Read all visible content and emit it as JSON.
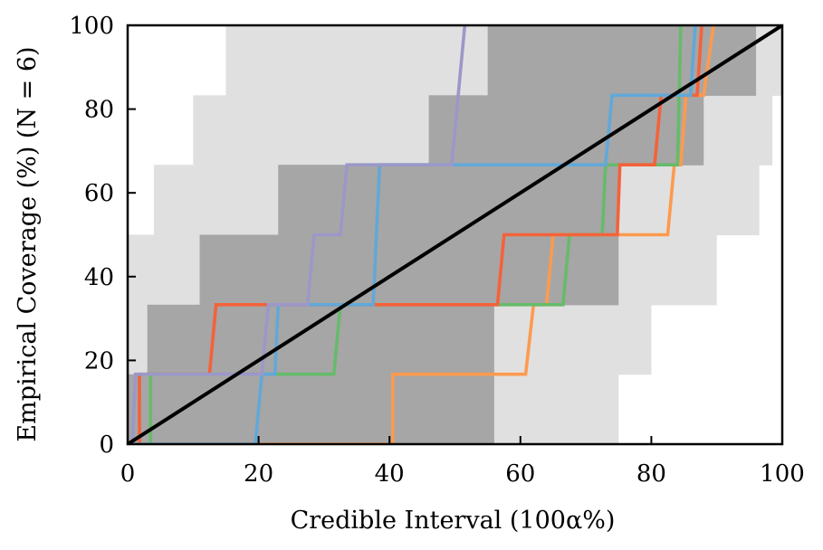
{
  "chart_data": {
    "type": "line",
    "xlabel": "Credible Interval (100α%)",
    "ylabel": "Empirical Coverage (%) (N = 6)",
    "xlim": [
      0,
      100
    ],
    "ylim": [
      0,
      100
    ],
    "x_ticks": [
      "0",
      "20",
      "40",
      "60",
      "80",
      "100"
    ],
    "y_ticks": [
      "0",
      "20",
      "40",
      "60",
      "80",
      "100"
    ],
    "grid": false,
    "legend": "none",
    "bands": [
      {
        "color": "#e0e0e0",
        "steps": [
          {
            "x_lo": 0,
            "x_hi": 16.5,
            "y_from": 0,
            "y_to": 16.7
          },
          {
            "x_lo": 0,
            "x_hi": 24.5,
            "y_from": 16.7,
            "y_to": 33.3
          },
          {
            "x_lo": 0,
            "x_hi": 32.5,
            "y_from": 33.3,
            "y_to": 50.0
          },
          {
            "x_lo": 4,
            "x_hi": 41.5,
            "y_from": 50.0,
            "y_to": 66.7
          },
          {
            "x_lo": 10,
            "x_hi": 53.5,
            "y_from": 66.7,
            "y_to": 83.3
          },
          {
            "x_lo": 15,
            "x_hi": 68.5,
            "y_from": 83.3,
            "y_to": 100
          }
        ],
        "steps_right": [
          {
            "x_lo": 31.5,
            "x_hi": 75,
            "y_from": 0,
            "y_to": 16.7
          },
          {
            "x_lo": 46.5,
            "x_hi": 80,
            "y_from": 16.7,
            "y_to": 33.3
          },
          {
            "x_lo": 58.5,
            "x_hi": 90,
            "y_from": 33.3,
            "y_to": 50.0
          },
          {
            "x_lo": 67.5,
            "x_hi": 96.5,
            "y_from": 50.0,
            "y_to": 66.7
          },
          {
            "x_lo": 75.5,
            "x_hi": 98.5,
            "y_from": 66.7,
            "y_to": 83.3
          },
          {
            "x_lo": 84,
            "x_hi": 100,
            "y_from": 83.3,
            "y_to": 100
          }
        ]
      },
      {
        "color": "#a6a6a6",
        "steps": [
          {
            "x_lo": 0,
            "x_hi": 56,
            "y_from": 0,
            "y_to": 16.7
          },
          {
            "x_lo": 3,
            "x_hi": 56,
            "y_from": 16.7,
            "y_to": 33.3
          },
          {
            "x_lo": 11,
            "x_hi": 75,
            "y_from": 33.3,
            "y_to": 50.0
          },
          {
            "x_lo": 23,
            "x_hi": 75,
            "y_from": 50.0,
            "y_to": 66.7
          },
          {
            "x_lo": 46,
            "x_hi": 88,
            "y_from": 66.7,
            "y_to": 83.3
          },
          {
            "x_lo": 55,
            "x_hi": 96,
            "y_from": 83.3,
            "y_to": 100
          }
        ]
      }
    ],
    "series": [
      {
        "color": "#e8e4f0",
        "x": [
          0,
          1,
          1
        ],
        "y": [
          0,
          0,
          0
        ]
      },
      {
        "color": "#fd9a4f",
        "x": [
          0,
          40.5,
          40.5,
          60.8,
          62.0,
          64.0,
          65.0,
          82.5,
          83.5,
          84.5,
          85.3,
          88.0,
          89.5
        ],
        "y": [
          0,
          0,
          16.7,
          16.7,
          33.3,
          33.3,
          50.0,
          50.0,
          66.7,
          66.7,
          83.3,
          83.3,
          100
        ]
      },
      {
        "color": "#66bb6a",
        "x": [
          0,
          3.5,
          3.5,
          31.5,
          32.5,
          66.5,
          67.5,
          72.5,
          73.0,
          84.0,
          84.5
        ],
        "y": [
          0,
          0,
          16.7,
          16.7,
          33.3,
          33.3,
          50.0,
          50.0,
          66.7,
          66.7,
          100
        ]
      },
      {
        "color": "#f4623a",
        "x": [
          0,
          1.8,
          1.8,
          12.5,
          13.5,
          56.5,
          57.5,
          74.8,
          75.2,
          80.5,
          81.5,
          87.0,
          87.7
        ],
        "y": [
          0,
          0,
          16.7,
          16.7,
          33.3,
          33.3,
          50.0,
          50.0,
          66.7,
          66.7,
          83.3,
          83.3,
          100
        ]
      },
      {
        "color": "#62a8d8",
        "x": [
          0,
          19.5,
          20.5,
          22.5,
          23.0,
          37.5,
          38.5,
          73.0,
          74.0,
          86.0,
          86.7
        ],
        "y": [
          0,
          0,
          16.7,
          16.7,
          33.3,
          33.3,
          66.7,
          66.7,
          83.3,
          83.3,
          100
        ]
      },
      {
        "color": "#9b98c8",
        "x": [
          0,
          0.7,
          1.2,
          20.5,
          21.5,
          27.5,
          28.5,
          32.5,
          33.5,
          49.5,
          51.5
        ],
        "y": [
          0,
          0,
          16.7,
          16.7,
          33.3,
          33.3,
          50.0,
          50.0,
          66.7,
          66.7,
          100
        ]
      }
    ],
    "reference_line": {
      "color": "#000000",
      "x": [
        0,
        100
      ],
      "y": [
        0,
        100
      ]
    }
  }
}
